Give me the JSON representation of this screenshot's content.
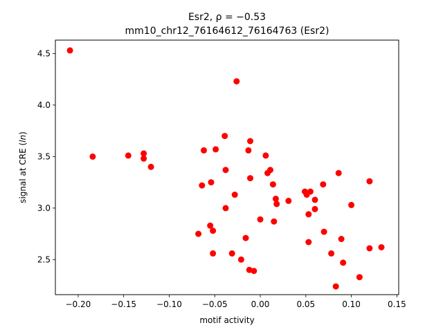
{
  "chart_data": {
    "type": "scatter",
    "title_line1": "Esr2, ρ = −0.53",
    "title_line2": "mm10_chr12_76164612_76164763 (Esr2)",
    "xlabel": "motif activity",
    "ylabel": "signal at CRE (ln)",
    "xlim": [
      -0.225,
      0.152
    ],
    "ylim": [
      2.16,
      4.63
    ],
    "xticks": [
      -0.2,
      -0.15,
      -0.1,
      -0.05,
      0.0,
      0.05,
      0.1,
      0.15
    ],
    "xtick_labels": [
      "−0.20",
      "−0.15",
      "−0.10",
      "−0.05",
      "0.00",
      "0.05",
      "0.10",
      "0.15"
    ],
    "yticks": [
      2.5,
      3.0,
      3.5,
      4.0,
      4.5
    ],
    "ytick_labels": [
      "2.5",
      "3.0",
      "3.5",
      "4.0",
      "4.5"
    ],
    "marker_color": "#ff0000",
    "grid": false,
    "points": [
      {
        "x": -0.209,
        "y": 4.53
      },
      {
        "x": -0.184,
        "y": 3.5
      },
      {
        "x": -0.145,
        "y": 3.51
      },
      {
        "x": -0.128,
        "y": 3.53
      },
      {
        "x": -0.128,
        "y": 3.48
      },
      {
        "x": -0.12,
        "y": 3.4
      },
      {
        "x": -0.068,
        "y": 2.75
      },
      {
        "x": -0.064,
        "y": 3.22
      },
      {
        "x": -0.062,
        "y": 3.56
      },
      {
        "x": -0.055,
        "y": 2.83
      },
      {
        "x": -0.054,
        "y": 3.25
      },
      {
        "x": -0.052,
        "y": 2.56
      },
      {
        "x": -0.052,
        "y": 2.78
      },
      {
        "x": -0.049,
        "y": 3.57
      },
      {
        "x": -0.039,
        "y": 3.7
      },
      {
        "x": -0.038,
        "y": 3.37
      },
      {
        "x": -0.038,
        "y": 3.0
      },
      {
        "x": -0.031,
        "y": 2.56
      },
      {
        "x": -0.028,
        "y": 3.13
      },
      {
        "x": -0.026,
        "y": 4.23
      },
      {
        "x": -0.021,
        "y": 2.5
      },
      {
        "x": -0.016,
        "y": 2.71
      },
      {
        "x": -0.013,
        "y": 3.56
      },
      {
        "x": -0.011,
        "y": 3.65
      },
      {
        "x": -0.011,
        "y": 3.29
      },
      {
        "x": -0.012,
        "y": 2.4
      },
      {
        "x": -0.007,
        "y": 2.39
      },
      {
        "x": 0.0,
        "y": 2.89
      },
      {
        "x": 0.006,
        "y": 3.51
      },
      {
        "x": 0.008,
        "y": 3.34
      },
      {
        "x": 0.011,
        "y": 3.37
      },
      {
        "x": 0.014,
        "y": 3.23
      },
      {
        "x": 0.015,
        "y": 2.87
      },
      {
        "x": 0.017,
        "y": 3.09
      },
      {
        "x": 0.018,
        "y": 3.04
      },
      {
        "x": 0.031,
        "y": 3.07
      },
      {
        "x": 0.049,
        "y": 3.16
      },
      {
        "x": 0.051,
        "y": 3.13
      },
      {
        "x": 0.053,
        "y": 2.94
      },
      {
        "x": 0.053,
        "y": 2.67
      },
      {
        "x": 0.055,
        "y": 3.16
      },
      {
        "x": 0.06,
        "y": 3.08
      },
      {
        "x": 0.06,
        "y": 2.99
      },
      {
        "x": 0.069,
        "y": 3.23
      },
      {
        "x": 0.07,
        "y": 2.77
      },
      {
        "x": 0.078,
        "y": 2.56
      },
      {
        "x": 0.083,
        "y": 2.24
      },
      {
        "x": 0.086,
        "y": 3.34
      },
      {
        "x": 0.089,
        "y": 2.7
      },
      {
        "x": 0.091,
        "y": 2.47
      },
      {
        "x": 0.1,
        "y": 3.03
      },
      {
        "x": 0.109,
        "y": 2.33
      },
      {
        "x": 0.12,
        "y": 3.26
      },
      {
        "x": 0.12,
        "y": 2.61
      },
      {
        "x": 0.133,
        "y": 2.62
      }
    ]
  }
}
